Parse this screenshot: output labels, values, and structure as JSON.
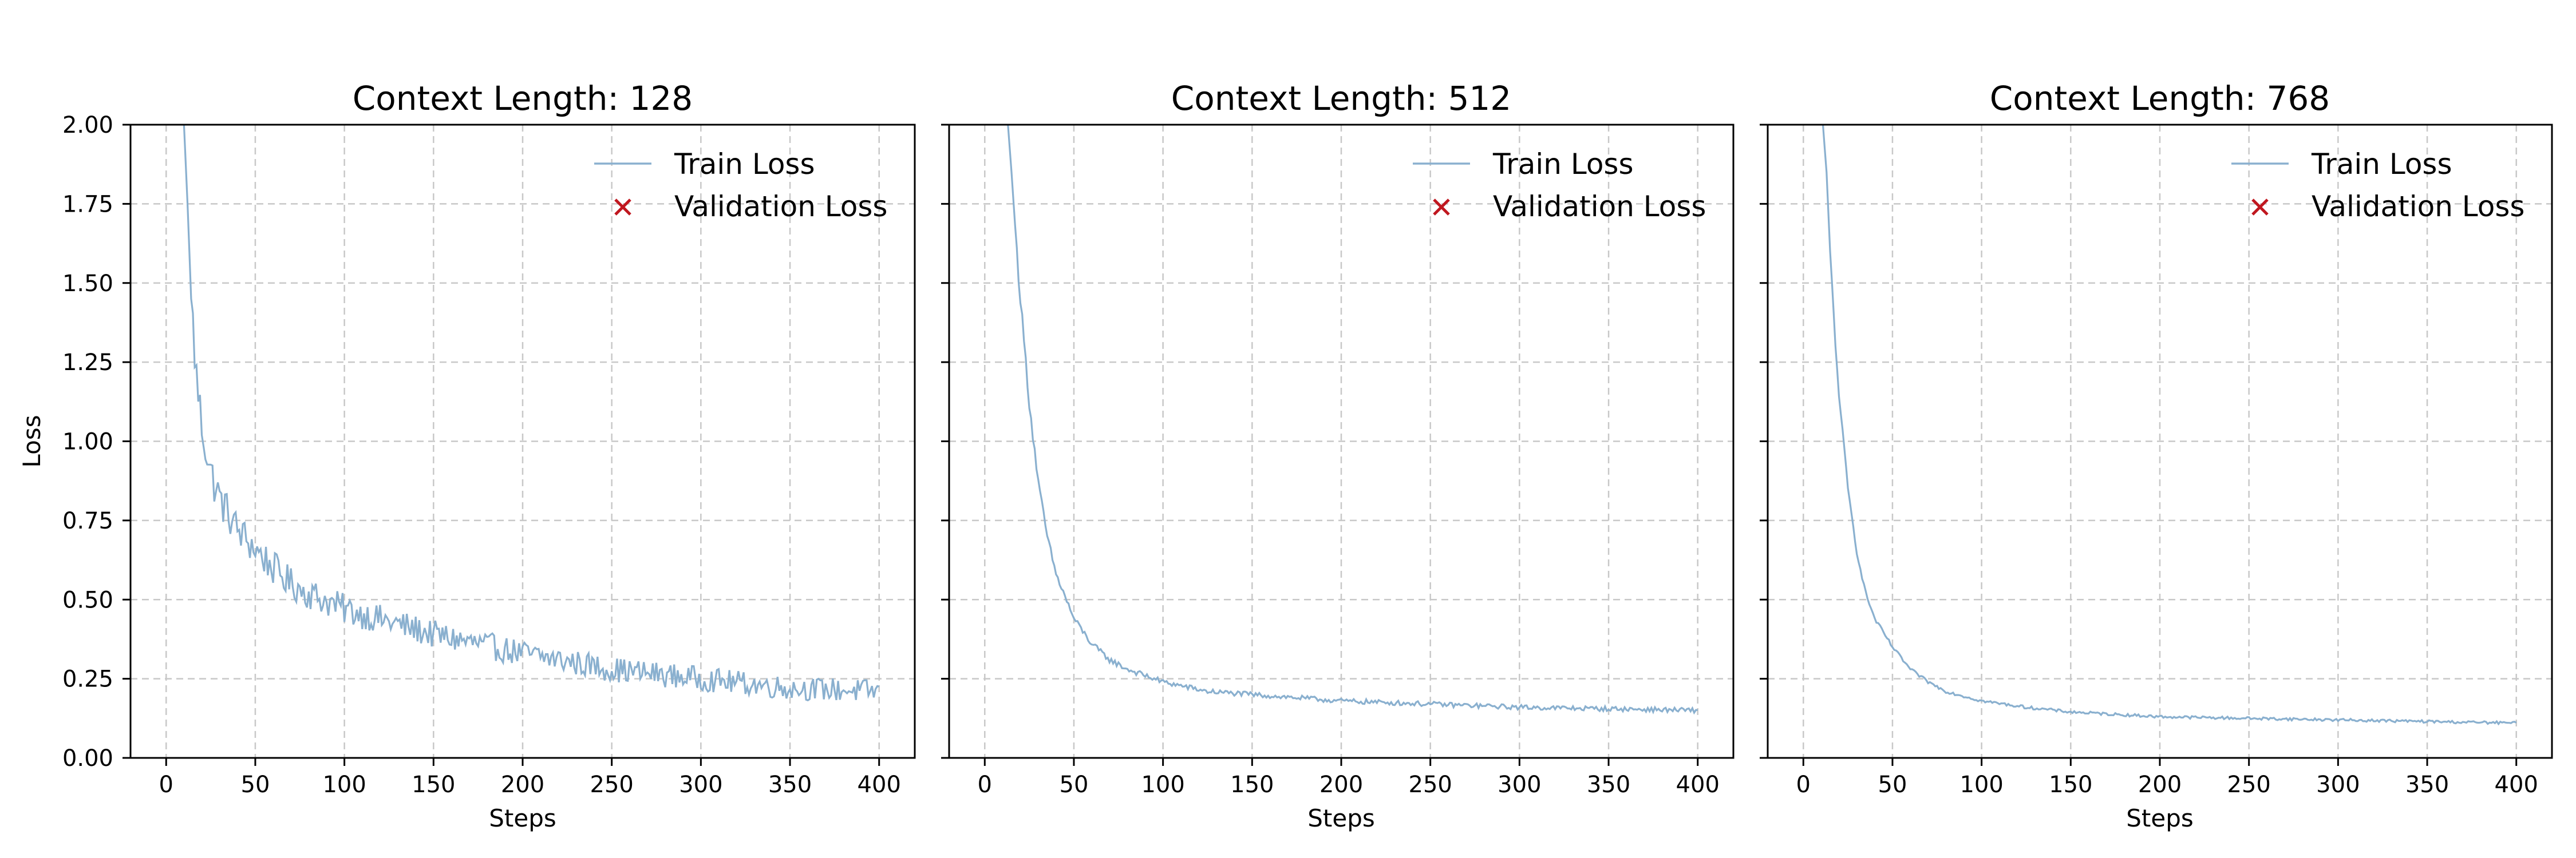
{
  "colors": {
    "train": "#8AB0CF",
    "validation": "#C0171F",
    "grid": "#C8C8C8",
    "axis": "#000000"
  },
  "legend": {
    "placement": "top-right",
    "train_label": "Train Loss",
    "validation_label": "Validation Loss"
  },
  "chart_data": [
    {
      "type": "line",
      "title": "Context Length: 128",
      "xlabel": "Steps",
      "ylabel": "Loss",
      "xlim": [
        -20,
        420
      ],
      "ylim": [
        0,
        2
      ],
      "grid": true,
      "xticks": [
        0,
        50,
        100,
        150,
        200,
        250,
        300,
        350,
        400
      ],
      "yticks": [
        "0.00",
        "0.25",
        "0.50",
        "0.75",
        "1.00",
        "1.25",
        "1.50",
        "1.75",
        "2.00"
      ],
      "show_yticklabels": true,
      "series": [
        {
          "name": "Train Loss",
          "noise": 0.045,
          "x": [
            10,
            12,
            14,
            17,
            20,
            25,
            30,
            40,
            50,
            60,
            70,
            80,
            100,
            125,
            150,
            175,
            200,
            250,
            300,
            350,
            400
          ],
          "y": [
            2.0,
            1.75,
            1.45,
            1.2,
            1.05,
            0.9,
            0.82,
            0.72,
            0.66,
            0.6,
            0.55,
            0.52,
            0.47,
            0.43,
            0.39,
            0.36,
            0.33,
            0.28,
            0.25,
            0.22,
            0.21
          ]
        },
        {
          "name": "Validation Loss",
          "x": [],
          "y": []
        }
      ]
    },
    {
      "type": "line",
      "title": "Context Length: 512",
      "xlabel": "Steps",
      "ylabel": "",
      "xlim": [
        -20,
        420
      ],
      "ylim": [
        0,
        2
      ],
      "grid": true,
      "xticks": [
        0,
        50,
        100,
        150,
        200,
        250,
        300,
        350,
        400
      ],
      "yticks": [
        "0.00",
        "0.25",
        "0.50",
        "0.75",
        "1.00",
        "1.25",
        "1.50",
        "1.75",
        "2.00"
      ],
      "show_yticklabels": false,
      "series": [
        {
          "name": "Train Loss",
          "noise": 0.01,
          "x": [
            13,
            15,
            18,
            20,
            25,
            30,
            35,
            40,
            50,
            60,
            70,
            80,
            100,
            125,
            150,
            175,
            200,
            250,
            300,
            350,
            400
          ],
          "y": [
            2.0,
            1.85,
            1.6,
            1.45,
            1.12,
            0.87,
            0.7,
            0.58,
            0.44,
            0.36,
            0.31,
            0.28,
            0.24,
            0.21,
            0.2,
            0.19,
            0.18,
            0.17,
            0.16,
            0.155,
            0.15
          ]
        },
        {
          "name": "Validation Loss",
          "x": [],
          "y": []
        }
      ]
    },
    {
      "type": "line",
      "title": "Context Length: 768",
      "xlabel": "Steps",
      "ylabel": "",
      "xlim": [
        -20,
        420
      ],
      "ylim": [
        0,
        2
      ],
      "grid": true,
      "xticks": [
        0,
        50,
        100,
        150,
        200,
        250,
        300,
        350,
        400
      ],
      "yticks": [
        "0.00",
        "0.25",
        "0.50",
        "0.75",
        "1.00",
        "1.25",
        "1.50",
        "1.75",
        "2.00"
      ],
      "show_yticklabels": false,
      "series": [
        {
          "name": "Train Loss",
          "noise": 0.006,
          "x": [
            11,
            13,
            15,
            18,
            20,
            25,
            30,
            35,
            40,
            50,
            60,
            70,
            80,
            100,
            125,
            150,
            200,
            250,
            300,
            350,
            400
          ],
          "y": [
            2.0,
            1.85,
            1.6,
            1.3,
            1.15,
            0.85,
            0.65,
            0.52,
            0.44,
            0.35,
            0.28,
            0.24,
            0.21,
            0.18,
            0.16,
            0.145,
            0.13,
            0.125,
            0.12,
            0.115,
            0.11
          ]
        },
        {
          "name": "Validation Loss",
          "x": [],
          "y": []
        }
      ]
    }
  ]
}
